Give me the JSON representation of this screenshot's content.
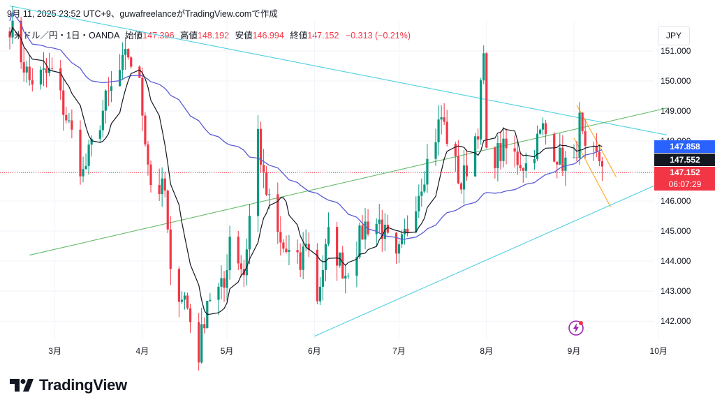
{
  "header": {
    "text": "9月 11, 2025 23:52 UTC+9、guwafreelanceがTradingView.comで作成"
  },
  "legend": {
    "symbol": "米ドル／円・1日・OANDA",
    "open_label": "始値",
    "open": "147.396",
    "high_label": "高値",
    "high": "148.192",
    "low_label": "安値",
    "low": "146.994",
    "close_label": "終値",
    "close": "147.152",
    "change": "−0.313 (−0.21%)"
  },
  "currency_button": "JPY",
  "price_tags": {
    "ma200": {
      "value": "147.858",
      "color": "#2962ff"
    },
    "ma20": {
      "value": "147.552",
      "color": "#131722"
    },
    "last": {
      "value": "147.152",
      "countdown": "06:07:29",
      "color": "#f23645"
    }
  },
  "brand": {
    "name": "TradingView"
  },
  "colors": {
    "up": "#089981",
    "down": "#f23645",
    "ma200": "#5b5bd6",
    "ma20": "#131722",
    "channel": "#4dd0e1",
    "trend": "#66bb6a",
    "wedge": "#ffa726",
    "grid": "#f0f3fa"
  },
  "chart_data": {
    "type": "candlestick",
    "symbol": "USDJPY",
    "timeframe": "1D",
    "ylim": [
      141.4,
      152.0
    ],
    "y_ticks": [
      "151.000",
      "150.000",
      "149.000",
      "148.000",
      "147.000",
      "146.000",
      "145.000",
      "144.000",
      "143.000",
      "142.000"
    ],
    "x_ticks": [
      {
        "label": "3月",
        "date": "2025-03-01"
      },
      {
        "label": "4月",
        "date": "2025-04-01"
      },
      {
        "label": "5月",
        "date": "2025-05-01"
      },
      {
        "label": "6月",
        "date": "2025-06-01"
      },
      {
        "label": "7月",
        "date": "2025-07-01"
      },
      {
        "label": "8月",
        "date": "2025-08-01"
      },
      {
        "label": "9月",
        "date": "2025-09-01"
      },
      {
        "label": "10月",
        "date": "2025-10-01"
      }
    ],
    "series": [
      {
        "kind": "price",
        "last": 147.152
      },
      {
        "kind": "moving_average",
        "last": 147.858
      },
      {
        "kind": "moving_average",
        "last": 147.552
      }
    ],
    "anchors": [
      [
        "2025-02-13",
        151.9
      ],
      [
        "2025-02-20",
        150.0
      ],
      [
        "2025-02-28",
        150.3
      ],
      [
        "2025-03-07",
        148.2
      ],
      [
        "2025-03-11",
        146.9
      ],
      [
        "2025-03-19",
        149.3
      ],
      [
        "2025-03-27",
        150.9
      ],
      [
        "2025-03-31",
        149.8
      ],
      [
        "2025-04-04",
        146.6
      ],
      [
        "2025-04-09",
        146.3
      ],
      [
        "2025-04-11",
        143.4
      ],
      [
        "2025-04-16",
        142.8
      ],
      [
        "2025-04-21",
        140.9
      ],
      [
        "2025-04-24",
        142.8
      ],
      [
        "2025-04-30",
        143.1
      ],
      [
        "2025-05-02",
        144.9
      ],
      [
        "2025-05-07",
        143.6
      ],
      [
        "2025-05-12",
        148.3
      ],
      [
        "2025-05-14",
        146.6
      ],
      [
        "2025-05-20",
        144.5
      ],
      [
        "2025-05-27",
        143.8
      ],
      [
        "2025-05-29",
        144.8
      ],
      [
        "2025-06-02",
        142.8
      ],
      [
        "2025-06-06",
        144.8
      ],
      [
        "2025-06-12",
        143.6
      ],
      [
        "2025-06-19",
        145.2
      ],
      [
        "2025-06-24",
        145.3
      ],
      [
        "2025-06-30",
        143.9
      ],
      [
        "2025-07-07",
        146.1
      ],
      [
        "2025-07-16",
        148.8
      ],
      [
        "2025-07-23",
        146.5
      ],
      [
        "2025-07-29",
        148.5
      ],
      [
        "2025-07-31",
        150.8
      ],
      [
        "2025-08-01",
        147.4
      ],
      [
        "2025-08-08",
        147.7
      ],
      [
        "2025-08-15",
        147.2
      ],
      [
        "2025-08-21",
        148.4
      ],
      [
        "2025-08-27",
        147.4
      ],
      [
        "2025-09-01",
        147.1
      ],
      [
        "2025-09-03",
        148.6
      ],
      [
        "2025-09-05",
        147.4
      ],
      [
        "2025-09-10",
        147.4
      ],
      [
        "2025-09-11",
        147.152
      ]
    ],
    "trendlines": [
      {
        "name": "channel-upper",
        "from": [
          "2025-02-13",
          152.5
        ],
        "to": [
          "2025-10-04",
          148.2
        ]
      },
      {
        "name": "channel-lower",
        "from": [
          "2025-06-01",
          141.5
        ],
        "to": [
          "2025-10-04",
          146.7
        ]
      },
      {
        "name": "trend-line",
        "from": [
          "2025-02-20",
          144.2
        ],
        "to": [
          "2025-10-04",
          149.1
        ]
      },
      {
        "name": "wedge-upper",
        "from": [
          "2025-09-02",
          149.2
        ],
        "to": [
          "2025-09-16",
          146.8
        ]
      },
      {
        "name": "wedge-lower",
        "from": [
          "2025-09-01",
          148.1
        ],
        "to": [
          "2025-09-14",
          145.8
        ]
      }
    ]
  }
}
